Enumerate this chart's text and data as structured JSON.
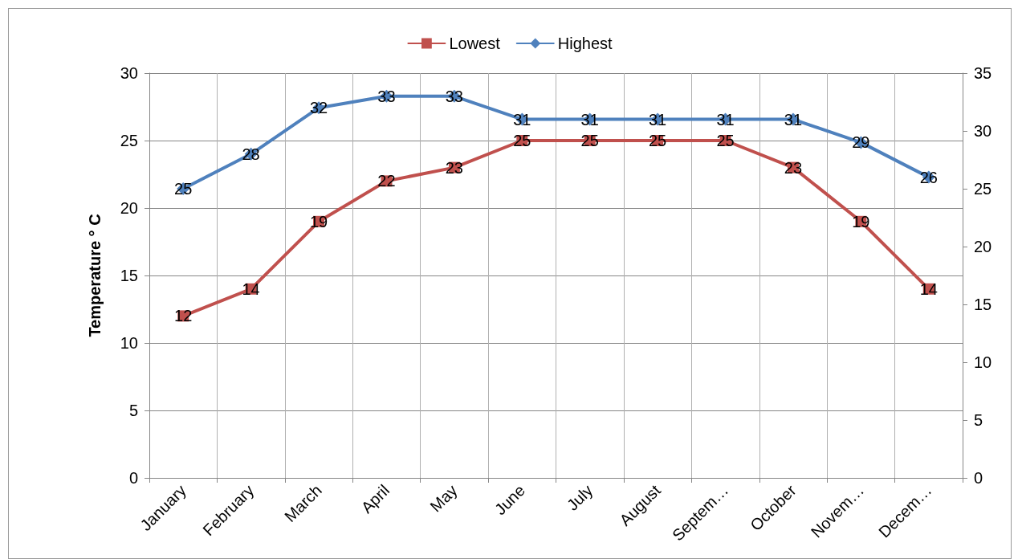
{
  "chart_data": {
    "type": "line",
    "categories": [
      "January",
      "February",
      "March",
      "April",
      "May",
      "June",
      "July",
      "August",
      "Septem…",
      "October",
      "Novem…",
      "Decem…"
    ],
    "ylabel": "Temperature ° C",
    "series": [
      {
        "name": "Lowest",
        "color": "#c0504d",
        "marker": "square",
        "values": [
          12,
          14,
          19,
          22,
          23,
          25,
          25,
          25,
          25,
          23,
          19,
          14
        ]
      },
      {
        "name": "Highest",
        "color": "#4f81bd",
        "marker": "diamond",
        "axis": "y2",
        "values": [
          25,
          28,
          32,
          33,
          33,
          31,
          31,
          31,
          31,
          31,
          29,
          26
        ]
      }
    ],
    "ylim": [
      0,
      30
    ],
    "yticks": [
      0,
      5,
      10,
      15,
      20,
      25,
      30
    ],
    "y2lim": [
      0,
      35
    ],
    "y2ticks": [
      0,
      5,
      10,
      15,
      20,
      25,
      30,
      35
    ],
    "grid": true,
    "legend": "top",
    "data_labels": true,
    "line_style": "solid"
  }
}
